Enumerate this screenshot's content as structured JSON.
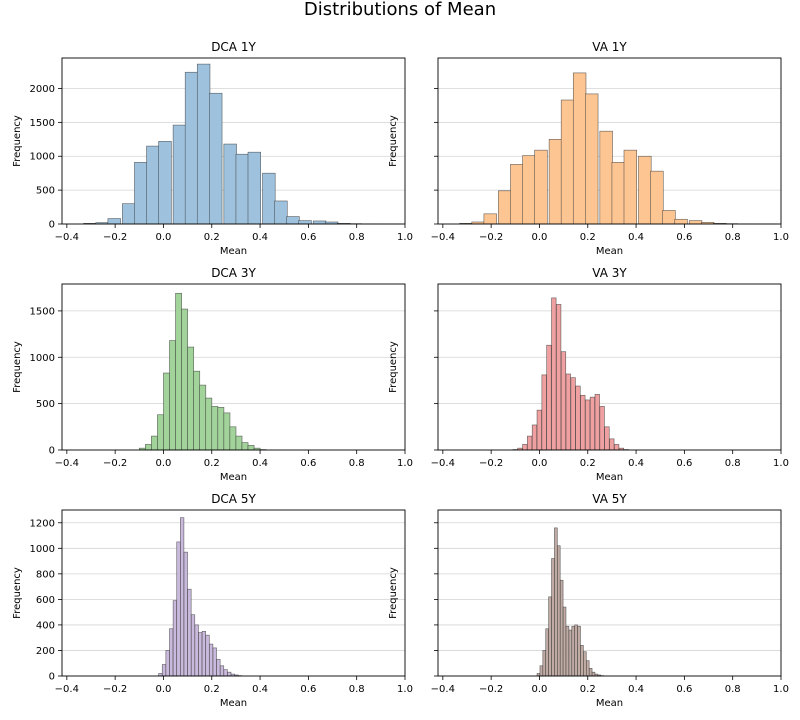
{
  "suptitle": "Distributions of Mean",
  "chart_data": [
    {
      "type": "bar",
      "title": "DCA 1Y",
      "xlabel": "Mean",
      "ylabel": "Frequency",
      "xlim": [
        -0.42,
        1.0
      ],
      "ylim": [
        0,
        2450
      ],
      "xticks": [
        -0.4,
        -0.2,
        0.0,
        0.2,
        0.4,
        0.6,
        0.8,
        1.0
      ],
      "yticks": [
        0,
        500,
        1000,
        1500,
        2000
      ],
      "grid": "y",
      "color": "#9ec2de",
      "bin_width": 0.0526,
      "bins_start": [
        -0.33,
        -0.28,
        -0.23,
        -0.17,
        -0.12,
        -0.07,
        -0.02,
        0.04,
        0.09,
        0.14,
        0.19,
        0.25,
        0.3,
        0.35,
        0.41,
        0.46,
        0.51,
        0.56,
        0.62,
        0.67,
        0.72,
        0.77,
        0.83,
        0.88,
        0.93
      ],
      "values": [
        10,
        20,
        80,
        300,
        910,
        1150,
        1220,
        1460,
        2240,
        2360,
        1930,
        1180,
        1030,
        1060,
        750,
        340,
        110,
        50,
        45,
        30,
        10,
        5,
        3,
        2,
        1
      ]
    },
    {
      "type": "bar",
      "title": "VA 1Y",
      "xlabel": "Mean",
      "ylabel": "Frequency",
      "xlim": [
        -0.42,
        1.0
      ],
      "ylim": [
        0,
        2450
      ],
      "xticks": [
        -0.4,
        -0.2,
        0.0,
        0.2,
        0.4,
        0.6,
        0.8,
        1.0
      ],
      "yticks": [
        0,
        500,
        1000,
        1500,
        2000
      ],
      "grid": "y",
      "color": "#fcc592",
      "bin_width": 0.0526,
      "bins_start": [
        -0.33,
        -0.28,
        -0.23,
        -0.17,
        -0.12,
        -0.07,
        -0.02,
        0.04,
        0.09,
        0.14,
        0.19,
        0.25,
        0.3,
        0.35,
        0.41,
        0.46,
        0.51,
        0.56,
        0.62,
        0.67,
        0.72,
        0.77,
        0.83,
        0.88,
        0.93
      ],
      "values": [
        10,
        30,
        150,
        490,
        880,
        1010,
        1090,
        1250,
        1830,
        2230,
        1920,
        1370,
        910,
        1090,
        1000,
        780,
        200,
        70,
        50,
        25,
        10,
        5,
        3,
        2,
        1
      ]
    },
    {
      "type": "bar",
      "title": "DCA 3Y",
      "xlabel": "Mean",
      "ylabel": "Frequency",
      "xlim": [
        -0.42,
        1.0
      ],
      "ylim": [
        0,
        1790
      ],
      "xticks": [
        -0.4,
        -0.2,
        0.0,
        0.2,
        0.4,
        0.6,
        0.8,
        1.0
      ],
      "yticks": [
        0,
        500,
        1000,
        1500
      ],
      "grid": "y",
      "color": "#a2d39a",
      "bin_width": 0.0253,
      "bins_start": [
        -0.1,
        -0.075,
        -0.05,
        -0.025,
        0.0,
        0.025,
        0.05,
        0.075,
        0.1,
        0.125,
        0.15,
        0.175,
        0.2,
        0.225,
        0.25,
        0.275,
        0.3,
        0.325,
        0.35,
        0.375,
        0.4
      ],
      "values": [
        20,
        60,
        150,
        380,
        830,
        1180,
        1690,
        1520,
        1110,
        850,
        700,
        560,
        470,
        460,
        400,
        250,
        150,
        80,
        50,
        20,
        5
      ]
    },
    {
      "type": "bar",
      "title": "VA 3Y",
      "xlabel": "Mean",
      "ylabel": "Frequency",
      "xlim": [
        -0.42,
        1.0
      ],
      "ylim": [
        0,
        1790
      ],
      "xticks": [
        -0.4,
        -0.2,
        0.0,
        0.2,
        0.4,
        0.6,
        0.8,
        1.0
      ],
      "yticks": [
        0,
        500,
        1000,
        1500
      ],
      "grid": "y",
      "color": "#efa0a1",
      "bin_width": 0.0189,
      "bins_start": [
        -0.11,
        -0.09,
        -0.07,
        -0.05,
        -0.03,
        -0.01,
        0.01,
        0.03,
        0.05,
        0.07,
        0.09,
        0.11,
        0.13,
        0.15,
        0.17,
        0.19,
        0.21,
        0.23,
        0.25,
        0.27,
        0.29,
        0.31,
        0.33,
        0.35
      ],
      "values": [
        5,
        20,
        60,
        150,
        270,
        430,
        810,
        1130,
        1640,
        1570,
        1060,
        820,
        780,
        690,
        590,
        540,
        570,
        600,
        470,
        250,
        120,
        60,
        20,
        5
      ]
    },
    {
      "type": "bar",
      "title": "DCA 5Y",
      "xlabel": "Mean",
      "ylabel": "Frequency",
      "xlim": [
        -0.42,
        1.0
      ],
      "ylim": [
        0,
        1300
      ],
      "xticks": [
        -0.4,
        -0.2,
        0.0,
        0.2,
        0.4,
        0.6,
        0.8,
        1.0
      ],
      "yticks": [
        0,
        200,
        400,
        600,
        800,
        1000,
        1200
      ],
      "grid": "y",
      "color": "#c9b9dc",
      "bin_width": 0.0147,
      "bins_start": [
        -0.02,
        -0.005,
        0.01,
        0.025,
        0.04,
        0.055,
        0.07,
        0.085,
        0.1,
        0.115,
        0.13,
        0.145,
        0.16,
        0.175,
        0.19,
        0.205,
        0.22,
        0.235,
        0.25,
        0.265,
        0.28,
        0.295,
        0.31
      ],
      "values": [
        20,
        90,
        200,
        370,
        590,
        1050,
        1240,
        970,
        680,
        480,
        400,
        340,
        350,
        320,
        250,
        220,
        130,
        80,
        50,
        30,
        15,
        8,
        3
      ]
    },
    {
      "type": "bar",
      "title": "VA 5Y",
      "xlabel": "Mean",
      "ylabel": "Frequency",
      "xlim": [
        -0.42,
        1.0
      ],
      "ylim": [
        0,
        1300
      ],
      "xticks": [
        -0.4,
        -0.2,
        0.0,
        0.2,
        0.4,
        0.6,
        0.8,
        1.0
      ],
      "yticks": [
        0,
        200,
        400,
        600,
        800,
        1000,
        1200
      ],
      "grid": "y",
      "color": "#c0aba5",
      "bin_width": 0.0118,
      "bins_start": [
        -0.01,
        0.002,
        0.014,
        0.026,
        0.038,
        0.05,
        0.062,
        0.074,
        0.086,
        0.098,
        0.11,
        0.122,
        0.134,
        0.146,
        0.158,
        0.17,
        0.182,
        0.194,
        0.206,
        0.218,
        0.23,
        0.242,
        0.254
      ],
      "values": [
        20,
        80,
        200,
        370,
        620,
        920,
        1160,
        1020,
        750,
        540,
        390,
        360,
        390,
        400,
        390,
        240,
        190,
        120,
        60,
        30,
        15,
        8,
        3
      ]
    }
  ]
}
